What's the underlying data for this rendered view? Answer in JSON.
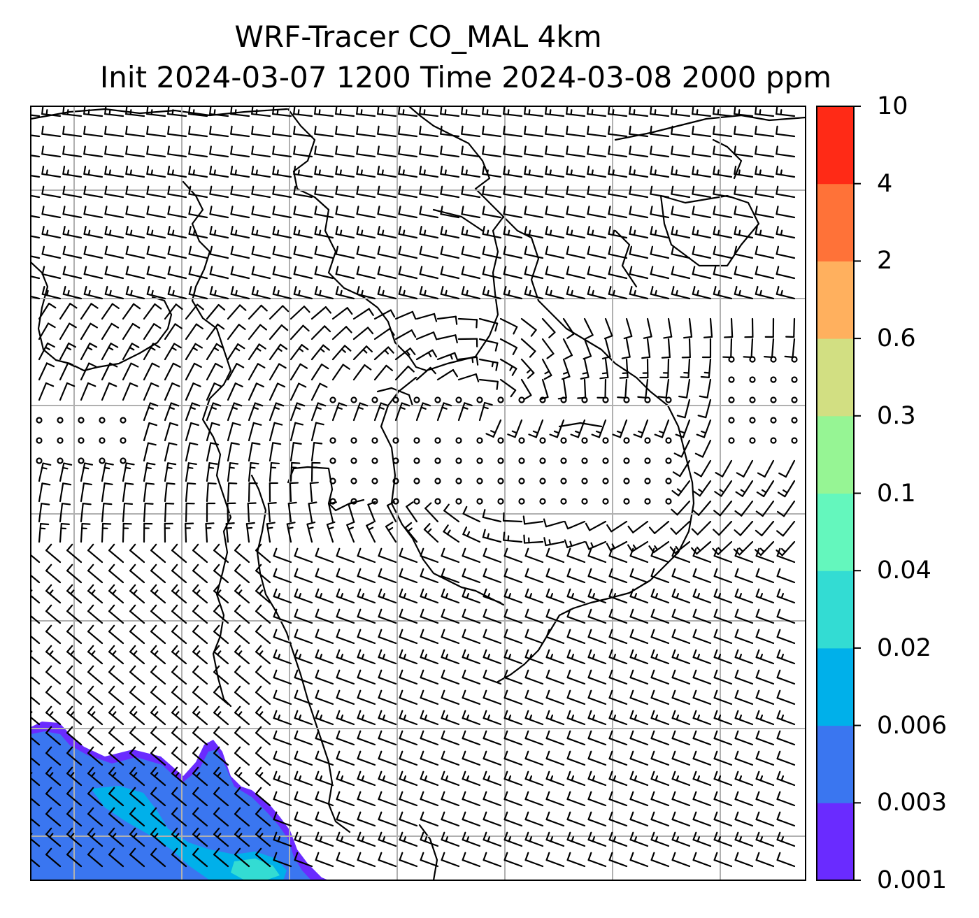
{
  "title_line1": "WRF-Tracer CO_MAL 4km",
  "title_line2": "Init 2024-03-07 1200 Time 2024-03-08 2000 ppm",
  "colorbar": {
    "ticks": [
      "0.001",
      "0.003",
      "0.006",
      "0.02",
      "0.04",
      "0.1",
      "0.3",
      "0.6",
      "2",
      "4",
      "10"
    ],
    "colors": [
      "#6a2bff",
      "#3a76f0",
      "#00b0ea",
      "#33dcd3",
      "#64f7bd",
      "#96f594",
      "#d2df82",
      "#ffb05e",
      "#ff7238",
      "#ff2a16"
    ]
  },
  "map": {
    "background": "#ffffff",
    "gridline_color": "#b0b0b0",
    "plume_colors": {
      "outer": "#6a2bff",
      "main": "#3a76f0",
      "core": "#00b0ea",
      "peak": "#33dcd3"
    },
    "calm_marker": "circle",
    "wind_symbol": "wind-barb"
  }
}
